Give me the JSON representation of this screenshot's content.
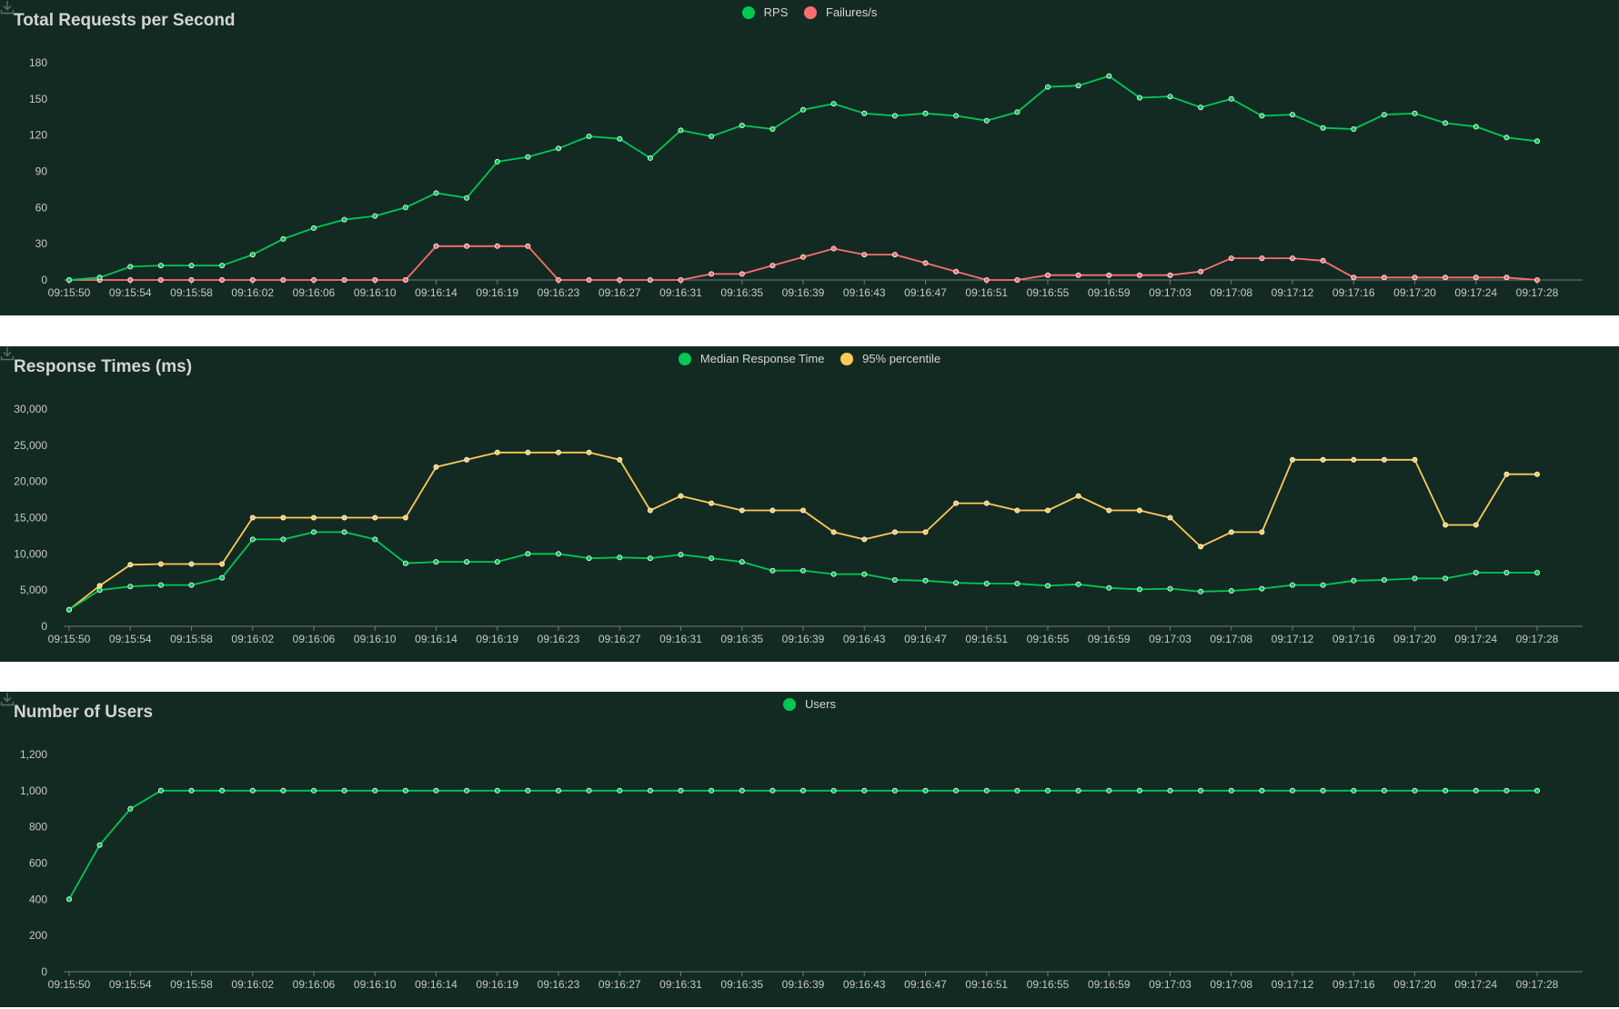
{
  "colors": {
    "panel_bg": "#132a23",
    "axis_text": "#c8c8c8",
    "axis_line": "#6b7d77",
    "rps": "#00c853",
    "failures": "#ff6d6d",
    "median": "#00c853",
    "p95": "#ffca55",
    "users": "#00c853"
  },
  "icons": {
    "download": "download-icon"
  },
  "chart_data": [
    {
      "id": "rps",
      "type": "line",
      "title": "Total Requests per Second",
      "x": [
        "09:15:50",
        "09:15:52",
        "09:15:54",
        "09:15:56",
        "09:15:58",
        "09:16:00",
        "09:16:02",
        "09:16:04",
        "09:16:06",
        "09:16:08",
        "09:16:10",
        "09:16:12",
        "09:16:14",
        "09:16:16",
        "09:16:19",
        "09:16:21",
        "09:16:23",
        "09:16:25",
        "09:16:27",
        "09:16:29",
        "09:16:31",
        "09:16:33",
        "09:16:35",
        "09:16:37",
        "09:16:39",
        "09:16:41",
        "09:16:43",
        "09:16:45",
        "09:16:47",
        "09:16:49",
        "09:16:51",
        "09:16:53",
        "09:16:55",
        "09:16:57",
        "09:16:59",
        "09:17:01",
        "09:17:03",
        "09:17:05",
        "09:17:08",
        "09:17:10",
        "09:17:12",
        "09:17:14",
        "09:17:16",
        "09:17:18",
        "09:17:20",
        "09:17:22",
        "09:17:24",
        "09:17:26",
        "09:17:28"
      ],
      "x_tick_labels": [
        "09:15:50",
        "09:15:54",
        "09:15:58",
        "09:16:02",
        "09:16:06",
        "09:16:10",
        "09:16:14",
        "09:16:19",
        "09:16:23",
        "09:16:27",
        "09:16:31",
        "09:16:35",
        "09:16:39",
        "09:16:43",
        "09:16:47",
        "09:16:51",
        "09:16:55",
        "09:16:59",
        "09:17:03",
        "09:17:08",
        "09:17:12",
        "09:17:16",
        "09:17:20",
        "09:17:24",
        "09:17:28"
      ],
      "ylim": [
        0,
        180
      ],
      "y_ticks": [
        0,
        30,
        60,
        90,
        120,
        150,
        180
      ],
      "series": [
        {
          "name": "RPS",
          "color_key": "rps",
          "values": [
            0,
            2,
            11,
            12,
            12,
            12,
            21,
            34,
            43,
            50,
            53,
            60,
            72,
            68,
            98,
            102,
            109,
            119,
            117,
            101,
            124,
            119,
            128,
            125,
            141,
            146,
            138,
            136,
            138,
            136,
            132,
            139,
            160,
            161,
            169,
            151,
            152,
            143,
            150,
            136,
            137,
            126,
            125,
            137,
            138,
            130,
            127,
            118,
            115
          ]
        },
        {
          "name": "Failures/s",
          "color_key": "failures",
          "values": [
            0,
            0,
            0,
            0,
            0,
            0,
            0,
            0,
            0,
            0,
            0,
            0,
            28,
            28,
            28,
            28,
            0,
            0,
            0,
            0,
            0,
            5,
            5,
            12,
            19,
            26,
            21,
            21,
            14,
            7,
            0,
            0,
            4,
            4,
            4,
            4,
            4,
            7,
            18,
            18,
            18,
            16,
            2,
            2,
            2,
            2,
            2,
            2,
            0
          ]
        }
      ]
    },
    {
      "id": "response",
      "type": "line",
      "title": "Response Times (ms)",
      "x": [
        "09:15:50",
        "09:15:52",
        "09:15:54",
        "09:15:56",
        "09:15:58",
        "09:16:00",
        "09:16:02",
        "09:16:04",
        "09:16:06",
        "09:16:08",
        "09:16:10",
        "09:16:12",
        "09:16:14",
        "09:16:16",
        "09:16:19",
        "09:16:21",
        "09:16:23",
        "09:16:25",
        "09:16:27",
        "09:16:29",
        "09:16:31",
        "09:16:33",
        "09:16:35",
        "09:16:37",
        "09:16:39",
        "09:16:41",
        "09:16:43",
        "09:16:45",
        "09:16:47",
        "09:16:49",
        "09:16:51",
        "09:16:53",
        "09:16:55",
        "09:16:57",
        "09:16:59",
        "09:17:01",
        "09:17:03",
        "09:17:05",
        "09:17:08",
        "09:17:10",
        "09:17:12",
        "09:17:14",
        "09:17:16",
        "09:17:18",
        "09:17:20",
        "09:17:22",
        "09:17:24",
        "09:17:26",
        "09:17:28"
      ],
      "x_tick_labels": [
        "09:15:50",
        "09:15:54",
        "09:15:58",
        "09:16:02",
        "09:16:06",
        "09:16:10",
        "09:16:14",
        "09:16:19",
        "09:16:23",
        "09:16:27",
        "09:16:31",
        "09:16:35",
        "09:16:39",
        "09:16:43",
        "09:16:47",
        "09:16:51",
        "09:16:55",
        "09:16:59",
        "09:17:03",
        "09:17:08",
        "09:17:12",
        "09:17:16",
        "09:17:20",
        "09:17:24",
        "09:17:28"
      ],
      "ylim": [
        0,
        30000
      ],
      "y_ticks": [
        0,
        5000,
        10000,
        15000,
        20000,
        25000,
        30000
      ],
      "series": [
        {
          "name": "Median Response Time",
          "color_key": "median",
          "values": [
            2300,
            5000,
            5500,
            5700,
            5700,
            6700,
            12000,
            12000,
            13000,
            13000,
            12000,
            8700,
            8900,
            8900,
            8900,
            10000,
            10000,
            9400,
            9500,
            9400,
            9900,
            9400,
            8900,
            7700,
            7700,
            7200,
            7200,
            6400,
            6300,
            6000,
            5900,
            5900,
            5600,
            5800,
            5300,
            5100,
            5200,
            4800,
            4900,
            5200,
            5700,
            5700,
            6300,
            6400,
            6600,
            6600,
            7400,
            7400,
            7400
          ]
        },
        {
          "name": "95% percentile",
          "color_key": "p95",
          "values": [
            2300,
            5600,
            8500,
            8600,
            8600,
            8600,
            15000,
            15000,
            15000,
            15000,
            15000,
            15000,
            22000,
            23000,
            24000,
            24000,
            24000,
            24000,
            23000,
            16000,
            18000,
            17000,
            16000,
            16000,
            16000,
            13000,
            12000,
            13000,
            13000,
            17000,
            17000,
            16000,
            16000,
            18000,
            16000,
            16000,
            15000,
            11000,
            13000,
            13000,
            23000,
            23000,
            23000,
            23000,
            23000,
            14000,
            14000,
            21000,
            21000
          ]
        }
      ]
    },
    {
      "id": "users",
      "type": "line",
      "title": "Number of Users",
      "x": [
        "09:15:50",
        "09:15:52",
        "09:15:54",
        "09:15:56",
        "09:15:58",
        "09:16:00",
        "09:16:02",
        "09:16:04",
        "09:16:06",
        "09:16:08",
        "09:16:10",
        "09:16:12",
        "09:16:14",
        "09:16:16",
        "09:16:19",
        "09:16:21",
        "09:16:23",
        "09:16:25",
        "09:16:27",
        "09:16:29",
        "09:16:31",
        "09:16:33",
        "09:16:35",
        "09:16:37",
        "09:16:39",
        "09:16:41",
        "09:16:43",
        "09:16:45",
        "09:16:47",
        "09:16:49",
        "09:16:51",
        "09:16:53",
        "09:16:55",
        "09:16:57",
        "09:16:59",
        "09:17:01",
        "09:17:03",
        "09:17:05",
        "09:17:08",
        "09:17:10",
        "09:17:12",
        "09:17:14",
        "09:17:16",
        "09:17:18",
        "09:17:20",
        "09:17:22",
        "09:17:24",
        "09:17:26",
        "09:17:28"
      ],
      "x_tick_labels": [
        "09:15:50",
        "09:15:54",
        "09:15:58",
        "09:16:02",
        "09:16:06",
        "09:16:10",
        "09:16:14",
        "09:16:19",
        "09:16:23",
        "09:16:27",
        "09:16:31",
        "09:16:35",
        "09:16:39",
        "09:16:43",
        "09:16:47",
        "09:16:51",
        "09:16:55",
        "09:16:59",
        "09:17:03",
        "09:17:08",
        "09:17:12",
        "09:17:16",
        "09:17:20",
        "09:17:24",
        "09:17:28"
      ],
      "ylim": [
        0,
        1200
      ],
      "y_ticks": [
        0,
        200,
        400,
        600,
        800,
        1000,
        1200
      ],
      "series": [
        {
          "name": "Users",
          "color_key": "users",
          "values": [
            400,
            700,
            900,
            1000,
            1000,
            1000,
            1000,
            1000,
            1000,
            1000,
            1000,
            1000,
            1000,
            1000,
            1000,
            1000,
            1000,
            1000,
            1000,
            1000,
            1000,
            1000,
            1000,
            1000,
            1000,
            1000,
            1000,
            1000,
            1000,
            1000,
            1000,
            1000,
            1000,
            1000,
            1000,
            1000,
            1000,
            1000,
            1000,
            1000,
            1000,
            1000,
            1000,
            1000,
            1000,
            1000,
            1000,
            1000,
            1000
          ]
        }
      ]
    }
  ]
}
